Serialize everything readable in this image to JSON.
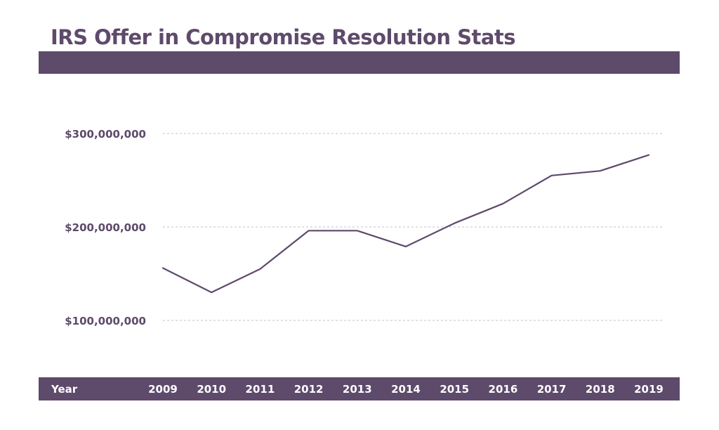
{
  "chart_data": {
    "type": "line",
    "title": "IRS Offer in Compromise Resolution Stats",
    "xlabel": "Year",
    "ylabel": "",
    "x": [
      "2009",
      "2010",
      "2011",
      "2012",
      "2013",
      "2014",
      "2015",
      "2016",
      "2017",
      "2018",
      "2019"
    ],
    "series": [
      {
        "values": [
          156000000,
          130000000,
          155000000,
          196000000,
          196000000,
          179000000,
          204000000,
          225000000,
          255000000,
          260000000,
          277000000
        ]
      }
    ],
    "ylim": [
      100000000,
      300000000
    ],
    "yticks": [
      300000000,
      200000000,
      100000000
    ],
    "ytick_labels": [
      "$300,000,000",
      "$200,000,000",
      "$100,000,000"
    ],
    "grid": true,
    "legend": "none",
    "colors": {
      "accent": "#5e4a6b",
      "grid": "#c7bfcd"
    }
  }
}
